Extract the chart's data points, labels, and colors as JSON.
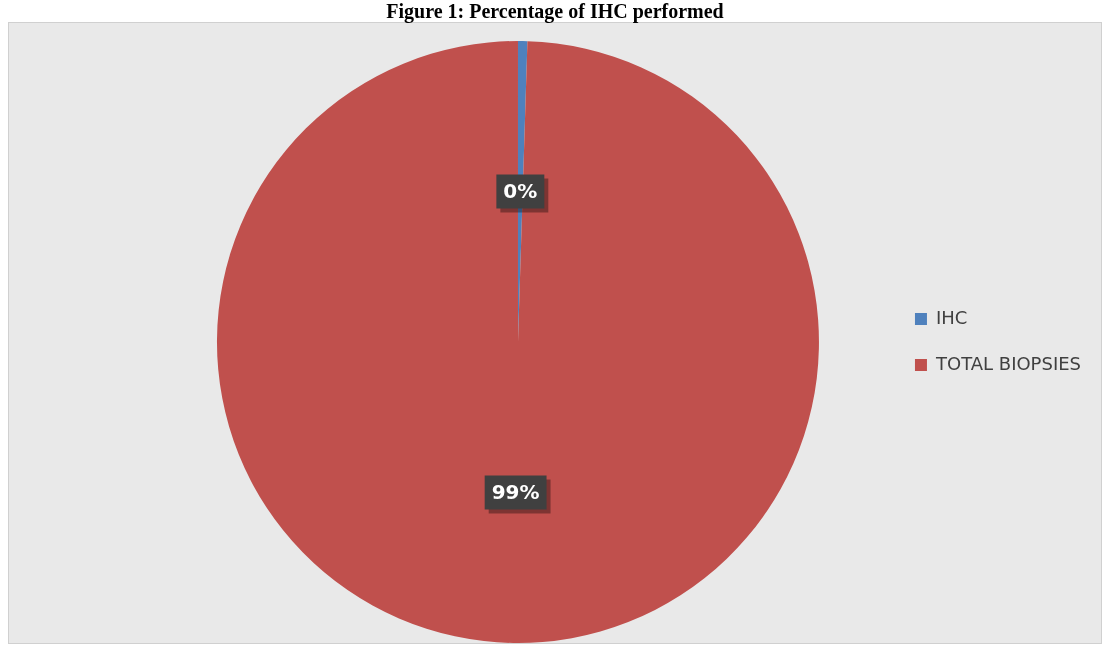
{
  "chart_data": {
    "type": "pie",
    "title": "Figure 1: Percentage of IHC performed",
    "categories": [
      "IHC",
      "TOTAL BIOPSIES"
    ],
    "values": [
      0.5,
      99.5
    ],
    "value_labels": [
      "0%",
      "99%"
    ],
    "colors": [
      "#4f81bd",
      "#c0504d"
    ],
    "legend": "right"
  }
}
